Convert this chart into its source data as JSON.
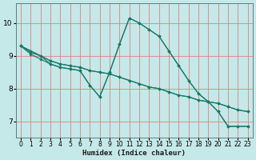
{
  "xlabel": "Humidex (Indice chaleur)",
  "background_color": "#c5e8e8",
  "grid_color": "#e08080",
  "line_color": "#1a7a6a",
  "xlim": [
    -0.5,
    23.5
  ],
  "ylim": [
    6.5,
    10.6
  ],
  "yticks": [
    7,
    8,
    9,
    10
  ],
  "xticks": [
    0,
    1,
    2,
    3,
    4,
    5,
    6,
    7,
    8,
    9,
    10,
    11,
    12,
    13,
    14,
    15,
    16,
    17,
    18,
    19,
    20,
    21,
    22,
    23
  ],
  "lines": [
    {
      "x": [
        0,
        1,
        2,
        3,
        4,
        5,
        6,
        7,
        8,
        9,
        10,
        11,
        12,
        13,
        14,
        15,
        16,
        17,
        18,
        19,
        20,
        21,
        22,
        23
      ],
      "y": [
        9.3,
        9.1,
        9.0,
        8.85,
        8.75,
        8.7,
        8.65,
        8.55,
        8.5,
        8.45,
        8.35,
        8.25,
        8.15,
        8.05,
        8.0,
        7.9,
        7.8,
        7.75,
        7.65,
        7.6,
        7.55,
        7.45,
        7.35,
        7.3
      ]
    },
    {
      "x": [
        0,
        1,
        2,
        3,
        4,
        5,
        6,
        7,
        8,
        9,
        10,
        11,
        12,
        13,
        14,
        15,
        16,
        17,
        18,
        19,
        20,
        21,
        22,
        23
      ],
      "y": [
        9.3,
        9.05,
        8.9,
        8.75,
        8.65,
        8.6,
        8.55,
        8.1,
        7.75,
        8.5,
        9.35,
        10.15,
        10.0,
        9.8,
        9.6,
        9.15,
        8.7,
        8.25,
        7.85,
        7.6,
        7.3,
        6.85,
        6.85,
        6.85
      ]
    },
    {
      "x": [
        0,
        2,
        3,
        4,
        5,
        6,
        7,
        8,
        9,
        10,
        11,
        12,
        13,
        14,
        15,
        16,
        17,
        18,
        19,
        20,
        21,
        22,
        23
      ],
      "y": [
        9.3,
        9.0,
        8.75,
        8.65,
        8.6,
        8.55,
        8.1,
        7.75,
        8.5,
        9.35,
        10.15,
        10.0,
        9.8,
        9.6,
        9.15,
        8.7,
        8.25,
        7.85,
        7.6,
        7.3,
        6.85,
        6.85,
        6.85
      ]
    },
    {
      "x": [
        0,
        1,
        2,
        3,
        4,
        5,
        6,
        7,
        8,
        9,
        10,
        11,
        12,
        13,
        14,
        15,
        16,
        17,
        18,
        19,
        20,
        21,
        22,
        23
      ],
      "y": [
        9.3,
        9.15,
        9.0,
        8.85,
        8.75,
        8.7,
        8.65,
        8.55,
        8.5,
        8.45,
        8.35,
        8.25,
        8.15,
        8.05,
        8.0,
        7.9,
        7.8,
        7.75,
        7.65,
        7.6,
        7.55,
        7.45,
        7.35,
        7.3
      ]
    }
  ]
}
